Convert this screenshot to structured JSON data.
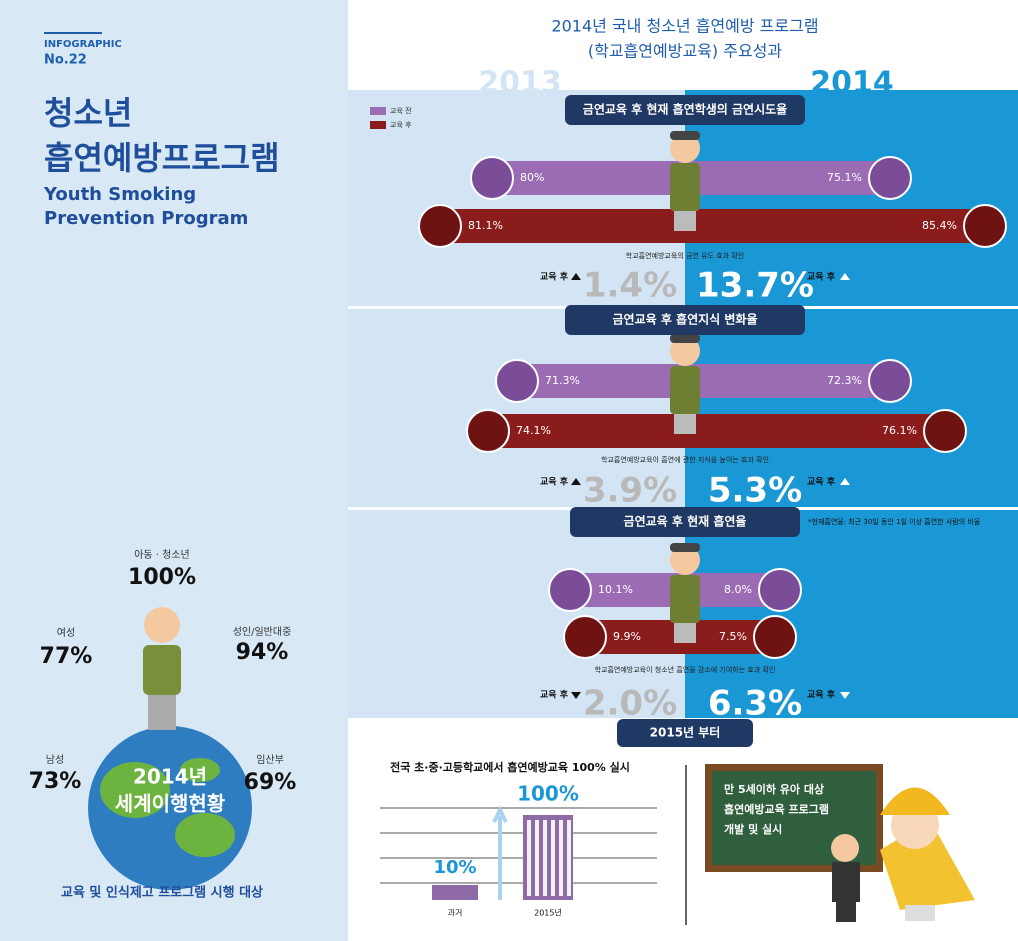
{
  "sidebar": {
    "label": "INFOGRAPHIC",
    "number": "No.22",
    "title_lines": [
      "청소년",
      "흡연예방프로그램"
    ],
    "subtitle_lines": [
      "Youth Smoking",
      "Prevention Program"
    ],
    "globe": {
      "groups": [
        {
          "label": "아동 · 청소년",
          "value": "100%"
        },
        {
          "label": "성인/일반대중",
          "value": "94%"
        },
        {
          "label": "여성",
          "value": "77%"
        },
        {
          "label": "남성",
          "value": "73%"
        },
        {
          "label": "임산부",
          "value": "69%"
        }
      ],
      "center_lines": [
        "2014년",
        "세계이행현황"
      ],
      "caption": "교육 및 인식제고 프로그램 시행 대상"
    }
  },
  "header": {
    "title_lines": [
      "2014년 국내 청소년 흡연예방 프로그램",
      "(학교흡연예방교육) 주요성과"
    ],
    "year_left": "2013",
    "year_right": "2014"
  },
  "legend": [
    "교육 전",
    "교육 후"
  ],
  "sections": [
    {
      "title": "금연교육 후 현재 흡연학생의 금연시도율",
      "before_2013": "80%",
      "before_2014": "75.1%",
      "after_2013": "81.1%",
      "after_2014": "85.4%",
      "note": "학교흡연예방교육의 금연 유도 효과 확인",
      "change_label_2013": "교육 후",
      "change_2013": "1.4%",
      "change_label_2014": "교육 후",
      "change_2014": "13.7%",
      "direction": "up"
    },
    {
      "title": "금연교육 후 흡연지식 변화율",
      "before_2013": "71.3%",
      "before_2014": "72.3%",
      "after_2013": "74.1%",
      "after_2014": "76.1%",
      "note": "학교흡연예방교육이 흡연에 관한 지식을 높이는 효과 확인",
      "change_label_2013": "교육 후",
      "change_2013": "3.9%",
      "change_label_2014": "교육 후",
      "change_2014": "5.3%",
      "direction": "up"
    },
    {
      "title": "금연교육 후 현재 흡연율",
      "side_note": "*현재흡연율: 최근 30일 동안 1일 이상 흡연한 사람의 비율",
      "before_2013": "10.1%",
      "before_2014": "8.0%",
      "after_2013": "9.9%",
      "after_2014": "7.5%",
      "note": "학교흡연예방교육이 청소년 흡연율 감소에 기여하는 효과 확인",
      "change_label_2013": "교육 후",
      "change_2013": "2.0%",
      "change_label_2014": "교육 후",
      "change_2014": "6.3%",
      "direction": "down"
    }
  ],
  "bottom": {
    "banner": "2015년 부터",
    "left_title": "전국 초·중·고등학교에서 흡연예방교육 100% 실시",
    "bars": [
      {
        "label": "과거",
        "value": "10%"
      },
      {
        "label": "2015년",
        "value": "100%"
      }
    ],
    "board_lines": [
      "만 5세이하 유아 대상",
      "흡연예방교육 프로그램",
      "개발 및 실시"
    ]
  }
}
